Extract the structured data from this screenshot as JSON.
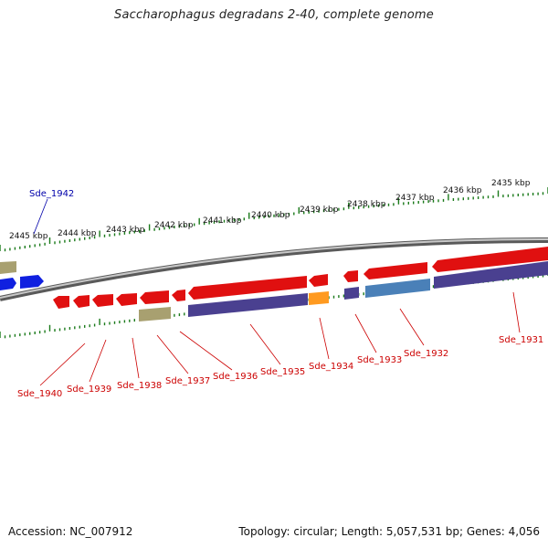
{
  "title": "Saccharophagus degradans 2-40, complete genome",
  "footer": {
    "accession": "Accession: NC_007912",
    "topology": "Topology: circular; Length: 5,057,531 bp; Genes: 4,056"
  },
  "scale": {
    "ticks": [
      "2435 kbp",
      "2436 kbp",
      "2437 kbp",
      "2438 kbp",
      "2439 kbp",
      "2440 kbp",
      "2441 kbp",
      "2442 kbp",
      "2443 kbp",
      "2444 kbp",
      "2445 kbp"
    ]
  },
  "gene_labels": {
    "forward": [
      "Sde_1942"
    ],
    "reverse": [
      "Sde_1940",
      "Sde_1939",
      "Sde_1938",
      "Sde_1937",
      "Sde_1936",
      "Sde_1935",
      "Sde_1934",
      "Sde_1933",
      "Sde_1932",
      "Sde_1931"
    ]
  },
  "colors": {
    "backbone": "#8a8a8a",
    "red_gene": "#e01010",
    "blue_gene": "#1020e0",
    "purple_cds": "#4a4090",
    "olive": "#a8a070",
    "orange": "#ff9a20",
    "steel_blue": "#4a80b8",
    "tick_green": "#1a7a1a",
    "label_red": "#cc0000",
    "label_blue": "#0000aa"
  }
}
